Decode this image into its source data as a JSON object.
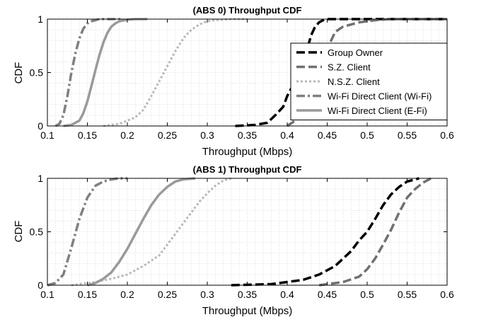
{
  "chart_data": [
    {
      "type": "line",
      "title": "(ABS 0) Throughput CDF",
      "xlabel": "Throughput (Mbps)",
      "ylabel": "CDF",
      "xlim": [
        0.1,
        0.6
      ],
      "ylim": [
        0,
        1
      ],
      "xticks": [
        "0.1",
        "0.15",
        "0.2",
        "0.25",
        "0.3",
        "0.35",
        "0.4",
        "0.45",
        "0.5",
        "0.55",
        "0.6"
      ],
      "yticks": [
        "0",
        "0.5",
        "1"
      ],
      "grid": true,
      "legend": {
        "position": "right",
        "entries": [
          "Group Owner",
          "S.Z. Client",
          "N.S.Z. Client",
          "Wi-Fi Direct Client (Wi-Fi)",
          "Wi-Fi Direct Client (E-Fi)"
        ]
      },
      "series": [
        {
          "name": "Group Owner",
          "color": "#000000",
          "style": "dashed",
          "x": [
            0.335,
            0.36,
            0.375,
            0.385,
            0.395,
            0.4,
            0.41,
            0.42,
            0.425,
            0.43,
            0.435,
            0.44,
            0.445,
            0.45,
            0.46,
            0.48,
            0.52,
            0.56,
            0.6
          ],
          "y": [
            0.0,
            0.01,
            0.03,
            0.1,
            0.18,
            0.28,
            0.42,
            0.58,
            0.72,
            0.85,
            0.93,
            0.97,
            0.99,
            1.0,
            1.0,
            1.0,
            1.0,
            1.0,
            1.0
          ]
        },
        {
          "name": "S.Z. Client",
          "color": "#707070",
          "style": "dashed",
          "x": [
            0.4,
            0.41,
            0.42,
            0.43,
            0.44,
            0.45,
            0.455,
            0.46,
            0.47,
            0.48,
            0.49,
            0.5,
            0.51,
            0.53,
            0.56,
            0.6
          ],
          "y": [
            0.0,
            0.05,
            0.18,
            0.35,
            0.55,
            0.72,
            0.8,
            0.88,
            0.93,
            0.95,
            0.97,
            0.98,
            0.99,
            1.0,
            1.0,
            1.0
          ]
        },
        {
          "name": "N.S.Z. Client",
          "color": "#b8b8b8",
          "style": "dotted",
          "x": [
            0.17,
            0.19,
            0.21,
            0.22,
            0.23,
            0.24,
            0.25,
            0.26,
            0.27,
            0.28,
            0.29,
            0.3,
            0.31,
            0.33,
            0.35
          ],
          "y": [
            0.0,
            0.02,
            0.08,
            0.15,
            0.28,
            0.42,
            0.56,
            0.7,
            0.82,
            0.9,
            0.95,
            0.98,
            0.99,
            1.0,
            1.0
          ]
        },
        {
          "name": "Wi-Fi Direct Client (Wi-Fi)",
          "color": "#808080",
          "style": "dashdot",
          "x": [
            0.11,
            0.115,
            0.12,
            0.125,
            0.13,
            0.135,
            0.14,
            0.145,
            0.15,
            0.155,
            0.16,
            0.165,
            0.17,
            0.18,
            0.19,
            0.195
          ],
          "y": [
            0.0,
            0.02,
            0.1,
            0.28,
            0.5,
            0.68,
            0.82,
            0.91,
            0.96,
            0.98,
            0.99,
            1.0,
            1.0,
            1.0,
            1.0,
            1.0
          ]
        },
        {
          "name": "Wi-Fi Direct Client (E-Fi)",
          "color": "#9a9a9a",
          "style": "solid",
          "x": [
            0.12,
            0.13,
            0.14,
            0.145,
            0.15,
            0.155,
            0.16,
            0.165,
            0.17,
            0.175,
            0.18,
            0.185,
            0.19,
            0.2,
            0.21,
            0.225
          ],
          "y": [
            0.0,
            0.01,
            0.05,
            0.12,
            0.23,
            0.37,
            0.52,
            0.66,
            0.78,
            0.87,
            0.93,
            0.96,
            0.98,
            0.995,
            1.0,
            1.0
          ]
        }
      ]
    },
    {
      "type": "line",
      "title": "(ABS 1) Throughput CDF",
      "xlabel": "Throughput (Mbps)",
      "ylabel": "CDF",
      "xlim": [
        0.1,
        0.6
      ],
      "ylim": [
        0,
        1
      ],
      "xticks": [
        "0.1",
        "0.15",
        "0.2",
        "0.25",
        "0.3",
        "0.35",
        "0.4",
        "0.45",
        "0.5",
        "0.55",
        "0.6"
      ],
      "yticks": [
        "0",
        "0.5",
        "1"
      ],
      "grid": true,
      "series": [
        {
          "name": "Group Owner",
          "color": "#000000",
          "style": "dashed",
          "x": [
            0.33,
            0.38,
            0.42,
            0.44,
            0.46,
            0.47,
            0.48,
            0.49,
            0.5,
            0.51,
            0.52,
            0.53,
            0.54,
            0.55,
            0.56,
            0.565
          ],
          "y": [
            0.0,
            0.01,
            0.05,
            0.1,
            0.18,
            0.25,
            0.32,
            0.42,
            0.5,
            0.62,
            0.75,
            0.85,
            0.92,
            0.97,
            0.99,
            1.0
          ]
        },
        {
          "name": "S.Z. Client",
          "color": "#707070",
          "style": "dashed",
          "x": [
            0.44,
            0.47,
            0.49,
            0.5,
            0.51,
            0.52,
            0.53,
            0.54,
            0.55,
            0.56,
            0.57,
            0.58
          ],
          "y": [
            0.0,
            0.03,
            0.08,
            0.15,
            0.25,
            0.38,
            0.52,
            0.68,
            0.82,
            0.9,
            0.96,
            1.0
          ]
        },
        {
          "name": "N.S.Z. Client",
          "color": "#b8b8b8",
          "style": "dotted",
          "x": [
            0.13,
            0.16,
            0.18,
            0.2,
            0.22,
            0.24,
            0.25,
            0.26,
            0.27,
            0.28,
            0.29,
            0.3,
            0.31,
            0.32,
            0.33
          ],
          "y": [
            0.0,
            0.03,
            0.06,
            0.1,
            0.18,
            0.28,
            0.38,
            0.48,
            0.58,
            0.68,
            0.78,
            0.86,
            0.93,
            0.98,
            1.0
          ]
        },
        {
          "name": "Wi-Fi Direct Client (Wi-Fi)",
          "color": "#808080",
          "style": "dashdot",
          "x": [
            0.1,
            0.11,
            0.12,
            0.13,
            0.14,
            0.15,
            0.16,
            0.17,
            0.18,
            0.19,
            0.2
          ],
          "y": [
            0.0,
            0.02,
            0.1,
            0.35,
            0.62,
            0.82,
            0.93,
            0.97,
            0.99,
            1.0,
            1.0
          ]
        },
        {
          "name": "Wi-Fi Direct Client (E-Fi)",
          "color": "#9a9a9a",
          "style": "solid",
          "x": [
            0.15,
            0.16,
            0.17,
            0.18,
            0.19,
            0.2,
            0.21,
            0.22,
            0.23,
            0.24,
            0.25,
            0.26,
            0.27,
            0.285
          ],
          "y": [
            0.0,
            0.02,
            0.06,
            0.12,
            0.22,
            0.34,
            0.48,
            0.62,
            0.75,
            0.85,
            0.92,
            0.97,
            0.99,
            1.0
          ]
        }
      ]
    }
  ]
}
